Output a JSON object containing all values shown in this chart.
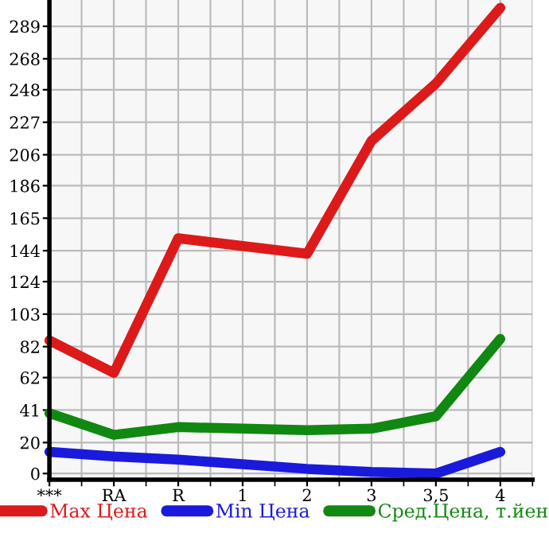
{
  "chart_data": {
    "type": "line",
    "categories": [
      "***",
      "RA",
      "R",
      "1",
      "2",
      "3",
      "3,5",
      "4"
    ],
    "series": [
      {
        "name": "Max Цена",
        "color": "#dd1a1a",
        "values": [
          86,
          65,
          152,
          147,
          142,
          215,
          252,
          301
        ]
      },
      {
        "name": "Min Цена",
        "color": "#1a1add",
        "values": [
          14,
          11,
          9,
          6,
          3,
          1,
          0,
          14
        ]
      },
      {
        "name": "Сред.Цена, т.йен",
        "color": "#118811",
        "values": [
          39,
          25,
          30,
          29,
          28,
          29,
          37,
          87
        ]
      }
    ],
    "ylim": [
      -4,
      306
    ],
    "yticks": [
      0,
      20,
      41,
      62,
      82,
      103,
      124,
      144,
      165,
      186,
      206,
      227,
      248,
      268,
      289
    ],
    "grid": true,
    "legend": "bottom",
    "line_style": "solid",
    "marker": "none"
  }
}
